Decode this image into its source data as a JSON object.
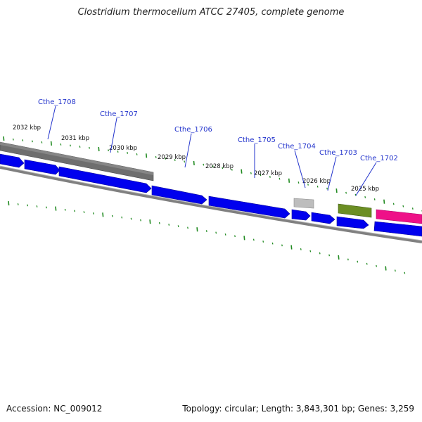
{
  "title": "Clostridium thermocellum ATCC 27405, complete genome",
  "footer": {
    "accession": "Accession: NC_009012",
    "summary": "Topology: circular; Length: 3,843,301 bp; Genes: 3,259"
  },
  "colors": {
    "backbone": "#808080",
    "forward_cds": "#0000ee",
    "reverse_cds": "#6e6e6e",
    "grey_gene": "#bdbdbd",
    "olive_gene": "#6b8e23",
    "pink_gene": "#ee1188",
    "tick_green": "#228b22",
    "label_blue": "#2233cc"
  },
  "scale_labels": [
    "2032 kbp",
    "2031 kbp",
    "2030 kbp",
    "2029 kbp",
    "2028 kbp",
    "2027 kbp",
    "2026 kbp",
    "2025 kbp"
  ],
  "gene_labels": [
    "Cthe_1708",
    "Cthe_1707",
    "Cthe_1706",
    "Cthe_1705",
    "Cthe_1704",
    "Cthe_1703",
    "Cthe_1702"
  ]
}
